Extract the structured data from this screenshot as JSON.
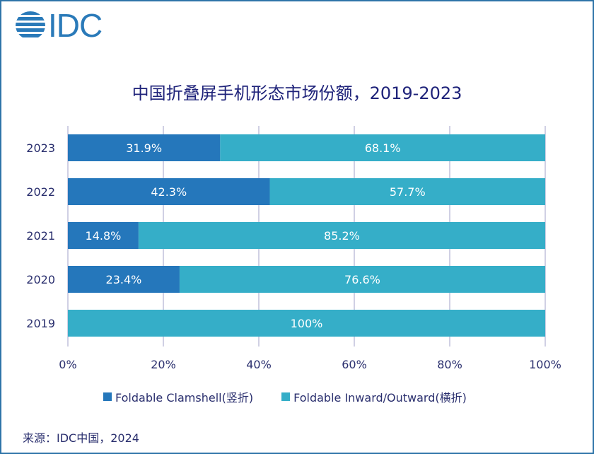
{
  "logo": {
    "text": "IDC"
  },
  "colors": {
    "clamshell": "#2577bb",
    "inward_outward": "#35aec8",
    "frame": "#2e74a8",
    "grid": "#c0c0dc"
  },
  "chart_data": {
    "type": "bar",
    "orientation": "horizontal",
    "stacked": true,
    "title": "中国折叠屏手机形态市场份额，2019-2023",
    "categories": [
      "2023",
      "2022",
      "2021",
      "2020",
      "2019"
    ],
    "series": [
      {
        "name": "Foldable Clamshell(竖折)",
        "values": [
          31.9,
          42.3,
          14.8,
          23.4,
          0
        ],
        "labels": [
          "31.9%",
          "42.3%",
          "14.8%",
          "23.4%",
          ""
        ]
      },
      {
        "name": "Foldable Inward/Outward(横折)",
        "values": [
          68.1,
          57.7,
          85.2,
          76.6,
          100
        ],
        "labels": [
          "68.1%",
          "57.7%",
          "85.2%",
          "76.6%",
          "100%"
        ]
      }
    ],
    "xlim": [
      0,
      100
    ],
    "xticks": [
      "0%",
      "20%",
      "40%",
      "60%",
      "80%",
      "100%"
    ],
    "grid": true,
    "legend_placement": "bottom"
  },
  "source": "来源：IDC中国，2024"
}
